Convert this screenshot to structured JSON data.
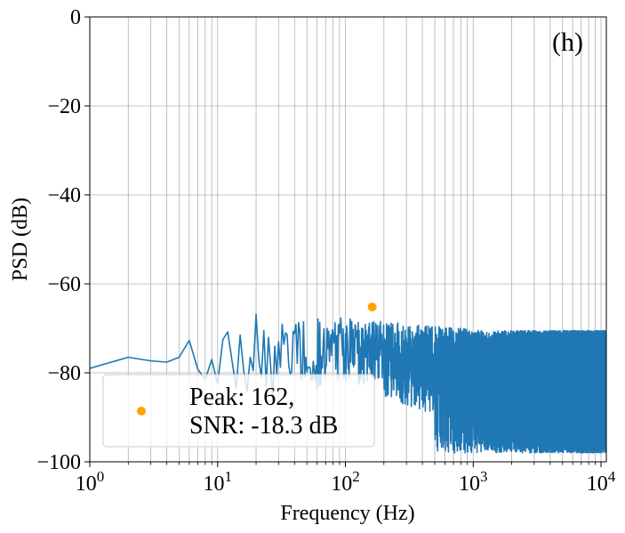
{
  "chart_data": {
    "type": "line",
    "panel_label": "(h)",
    "xlabel": "Frequency (Hz)",
    "ylabel": "PSD (dB)",
    "xscale": "log",
    "xlim": [
      1,
      11000
    ],
    "ylim": [
      -100,
      0
    ],
    "grid": true,
    "x_ticks": [
      {
        "base": "10",
        "exp": "0"
      },
      {
        "base": "10",
        "exp": "1"
      },
      {
        "base": "10",
        "exp": "2"
      },
      {
        "base": "10",
        "exp": "3"
      },
      {
        "base": "10",
        "exp": "4"
      }
    ],
    "y_ticks": [
      "0",
      "−20",
      "−40",
      "−60",
      "−80",
      "−100"
    ],
    "y_tick_values": [
      0,
      -20,
      -40,
      -60,
      -80,
      -100
    ],
    "series": [
      {
        "name": "PSD",
        "color": "#1f77b4",
        "x": [
          1,
          2,
          3,
          4,
          5,
          6,
          7,
          8,
          9,
          10,
          11,
          12,
          13,
          14,
          15,
          16,
          17,
          18,
          19,
          20,
          21,
          22,
          23,
          24,
          25,
          26,
          27,
          28,
          29,
          30
        ],
        "y": [
          -79,
          -76.5,
          -77.3,
          -77.6,
          -76.5,
          -72.7,
          -79.2,
          -81.5,
          -77,
          -82.5,
          -72.5,
          -70.8,
          -77.5,
          -83.5,
          -71.5,
          -79.5,
          -84,
          -76.5,
          -79.5,
          -66.8,
          -77,
          -81,
          -70.5,
          -83,
          -72,
          -78.5,
          -86,
          -74,
          -80.5,
          -73
        ],
        "dense_region": {
          "from": 30,
          "to": 11000,
          "upper_envelope": -66,
          "lower_envelope": -100,
          "note": "noise-like dense oscillation"
        }
      }
    ],
    "peak_marker": {
      "x": 162,
      "y": -65.2,
      "color": "#ffa500"
    },
    "legend": {
      "position": "lower-left",
      "line1": "Peak: 162,",
      "line2": "SNR: -18.3 dB",
      "marker_color": "#ffa500"
    }
  }
}
